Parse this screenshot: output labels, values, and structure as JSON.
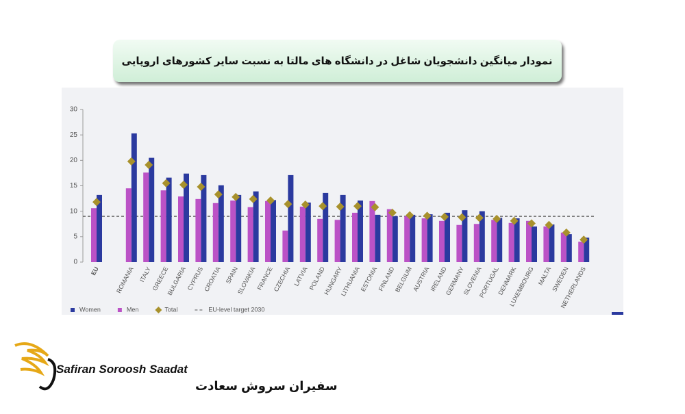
{
  "chart_data": {
    "type": "bar",
    "title": "نمودار میانگین دانشجویان شاغل در دانشگاه های مالتا به نسبت سایر کشورهای اروپایی",
    "categories": [
      "EU",
      null,
      "ROMANIA",
      "ITALY",
      "GREECE",
      "BULGARIA",
      "CYPRUS",
      "CROATIA",
      "SPAIN",
      "SLOVAKIA",
      "FRANCE",
      "CZECHIA",
      "LATVIA",
      "POLAND",
      "HUNGARY",
      "LITHUANIA",
      "ESTONIA",
      "FINLAND",
      "BELGIUM",
      "AUSTRIA",
      "IRELAND",
      "GERMANY",
      "SLOVENIA",
      "PORTUGAL",
      "DENMARK",
      "LUXEMBOURG",
      "MALTA",
      "SWEDEN",
      "NETHERLANDS"
    ],
    "series": [
      {
        "name": "Women",
        "color": "#2b3a9f",
        "values": [
          13.2,
          null,
          25.3,
          20.5,
          16.6,
          17.4,
          17.1,
          15.1,
          13.2,
          13.9,
          12.2,
          17.1,
          11.7,
          13.6,
          13.2,
          12.1,
          9.3,
          9.0,
          9.3,
          9.4,
          9.7,
          10.2,
          10.0,
          8.7,
          8.6,
          7.0,
          7.4,
          5.5,
          4.8
        ]
      },
      {
        "name": "Men",
        "color": "#bb52c6",
        "values": [
          10.6,
          null,
          14.5,
          17.6,
          14.1,
          12.9,
          12.4,
          11.6,
          12.1,
          10.8,
          12.0,
          6.2,
          10.9,
          8.5,
          8.3,
          9.7,
          12.0,
          10.4,
          9.0,
          8.6,
          8.1,
          7.3,
          7.5,
          8.3,
          7.7,
          8.1,
          7.0,
          5.8,
          4.0
        ]
      },
      {
        "name": "Total",
        "color": "#a8912c",
        "marker": "diamond",
        "values": [
          11.8,
          null,
          19.8,
          19.1,
          15.5,
          15.2,
          14.8,
          13.3,
          12.8,
          12.4,
          12.1,
          11.4,
          11.3,
          11.0,
          10.9,
          11.0,
          10.8,
          9.7,
          9.2,
          9.1,
          8.9,
          8.8,
          8.7,
          8.5,
          8.1,
          7.6,
          7.3,
          5.8,
          4.4
        ]
      }
    ],
    "reference_lines": [
      {
        "name": "EU-level target 2030",
        "value": 9,
        "color": "#555555",
        "style": "dashed"
      }
    ],
    "ylim": [
      0,
      30
    ],
    "yticks": [
      0,
      5,
      10,
      15,
      20,
      25,
      30
    ],
    "grid": false,
    "legend": "bottom-left"
  },
  "brand": {
    "name_en": "Safiran Soroosh Saadat",
    "name_fa": "سفیران سروش سعادت"
  }
}
